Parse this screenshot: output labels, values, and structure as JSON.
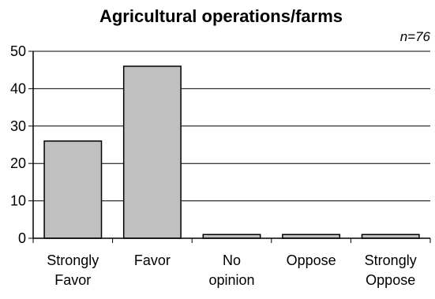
{
  "chart_data": {
    "type": "bar",
    "title": "Agricultural operations/farms",
    "note": "n=76",
    "categories": [
      [
        "Strongly",
        "Favor"
      ],
      [
        "Favor"
      ],
      [
        "No",
        "opinion"
      ],
      [
        "Oppose"
      ],
      [
        "Strongly",
        "Oppose"
      ]
    ],
    "values": [
      26,
      46,
      1,
      1,
      1
    ],
    "ylim": [
      0,
      50
    ],
    "yticks": [
      "0",
      "10",
      "20",
      "30",
      "40",
      "50"
    ],
    "ytick_values": [
      0,
      10,
      20,
      30,
      40,
      50
    ],
    "grid": true,
    "bar_color": "#c0c0c0",
    "grid_color": "#000000",
    "axis_color": "#000000"
  }
}
